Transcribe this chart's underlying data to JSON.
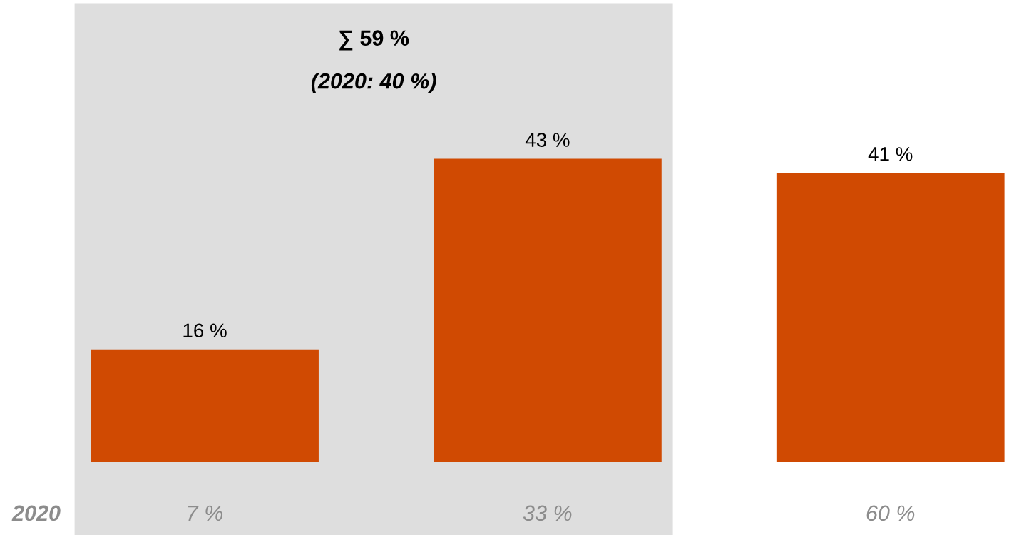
{
  "chart_data": {
    "type": "bar",
    "categories": [
      null,
      null,
      null
    ],
    "values": [
      16,
      43,
      41
    ],
    "value_labels": [
      "16 %",
      "43 %",
      "41 %"
    ],
    "color": "#d04a02",
    "annotations": [
      "∑ 59 %",
      "(2020: 40 %)",
      "2020",
      "7 %",
      "33 %",
      "60 %"
    ],
    "grid": false,
    "legend": false
  }
}
